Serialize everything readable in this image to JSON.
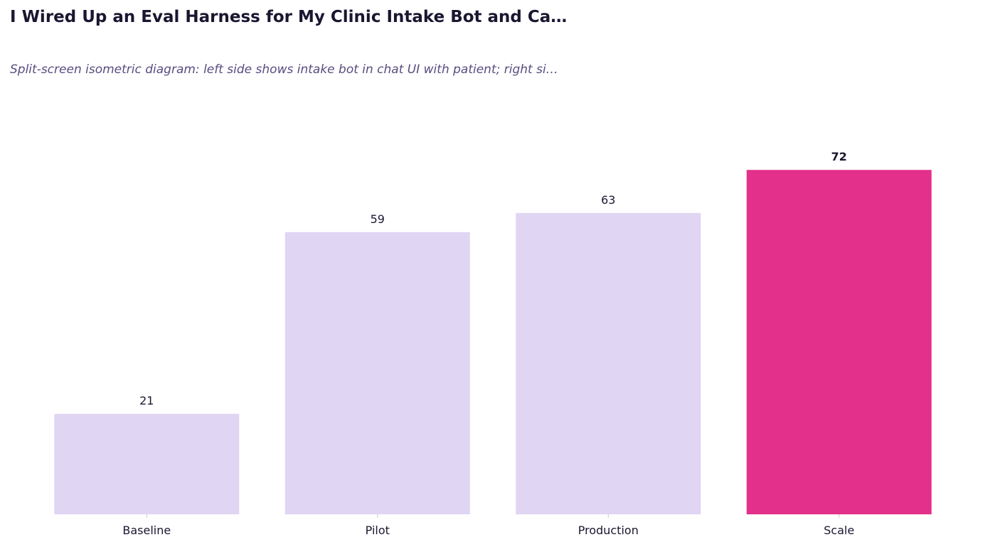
{
  "header": {
    "title": "I Wired Up an Eval Harness for My Clinic Intake Bot and Ca…",
    "subtitle": "Split-screen isometric diagram: left side shows intake bot in chat UI with patient; right si…"
  },
  "colors": {
    "bar_default": "#e0d5f3",
    "bar_highlight": "#e3308a",
    "text_primary": "#1a1630",
    "text_secondary": "#594c80",
    "tick_color": "#cccccc"
  },
  "chart_data": {
    "type": "bar",
    "categories": [
      "Baseline",
      "Pilot",
      "Production",
      "Scale"
    ],
    "values": [
      21,
      59,
      63,
      72
    ],
    "highlight_index": 3,
    "value_labels": [
      "21",
      "59",
      "63",
      "72"
    ],
    "title": "I Wired Up an Eval Harness for My Clinic Intake Bot and Ca…",
    "subtitle": "Split-screen isometric diagram: left side shows intake bot in chat UI with patient; right si…",
    "xlabel": "",
    "ylabel": "",
    "ylim": [
      0,
      75.6
    ],
    "grid": false,
    "legend": "none"
  }
}
